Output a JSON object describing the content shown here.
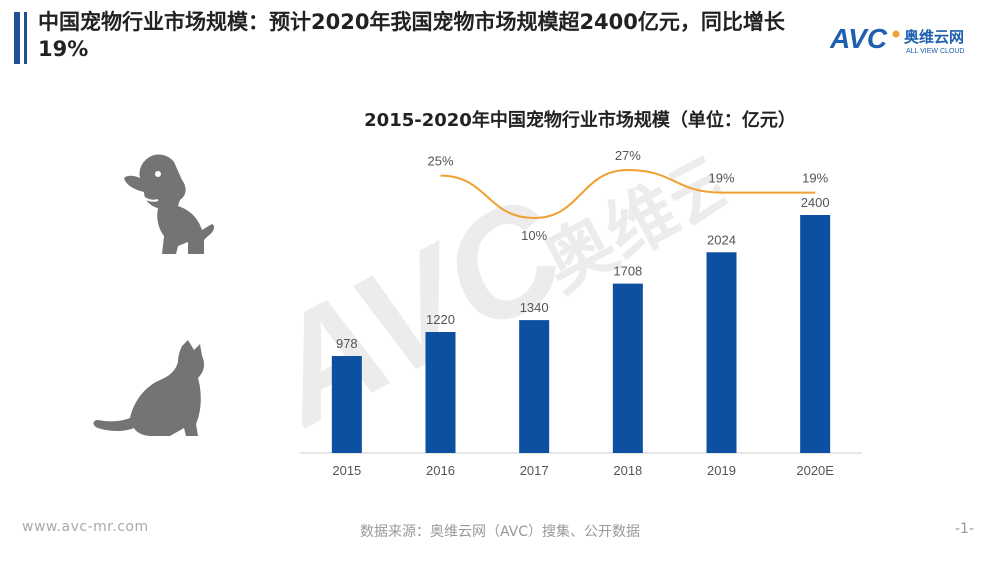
{
  "header": {
    "title": "中国宠物行业市场规模：预计2020年我国宠物市场规模超2400亿元，同比增长19%"
  },
  "logo": {
    "brand": "AVC",
    "cn_name": "奥维云网",
    "en_name": "ALL VIEW CLOUD"
  },
  "icons": [
    "dog-icon",
    "cat-icon"
  ],
  "colors": {
    "bar": "#0d4fa0",
    "line": "#f0a030",
    "title_accent": "#1f4f96"
  },
  "chart_data": {
    "type": "bar",
    "title": "2015-2020年中国宠物行业市场规模（单位：亿元）",
    "categories": [
      "2015",
      "2016",
      "2017",
      "2018",
      "2019",
      "2020E"
    ],
    "series": [
      {
        "values": [
          978,
          1220,
          1340,
          1708,
          2024,
          2400
        ]
      },
      {
        "values": [
          null,
          25,
          10,
          27,
          19,
          19
        ],
        "labels": [
          "",
          "25%",
          "10%",
          "27%",
          "19%",
          "19%"
        ]
      }
    ],
    "ylim": [
      0,
      2650
    ],
    "grid": false,
    "legend": "none"
  },
  "footer": {
    "website": "www.avc-mr.com",
    "source": "数据来源：奥维云网（AVC）搜集、公开数据",
    "page": "-1-"
  }
}
